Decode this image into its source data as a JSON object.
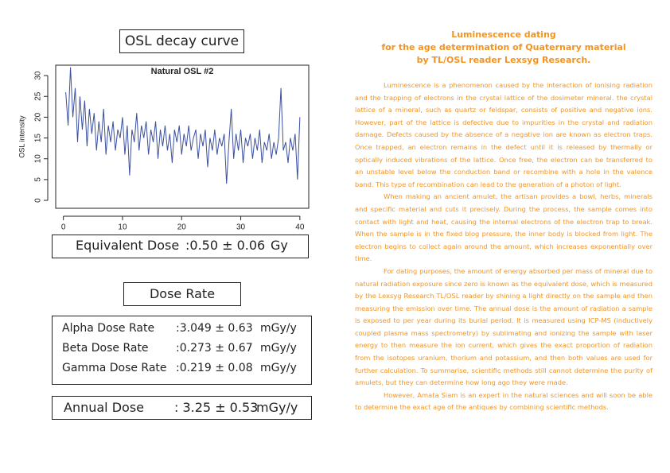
{
  "panel_title": "OSL decay curve",
  "chart_data": {
    "type": "line",
    "title": "Natural OSL #2",
    "y_label": "OSL intensity",
    "color": "#3b4fa0",
    "x": [
      0.4,
      0.8,
      1.2,
      1.6,
      2.0,
      2.4,
      2.8,
      3.2,
      3.6,
      4.0,
      4.4,
      4.8,
      5.2,
      5.6,
      6.0,
      6.4,
      6.8,
      7.2,
      7.6,
      8.0,
      8.4,
      8.8,
      9.2,
      9.6,
      10.0,
      10.4,
      10.8,
      11.2,
      11.6,
      12.0,
      12.4,
      12.8,
      13.2,
      13.6,
      14.0,
      14.4,
      14.8,
      15.2,
      15.6,
      16.0,
      16.4,
      16.8,
      17.2,
      17.6,
      18.0,
      18.4,
      18.8,
      19.2,
      19.6,
      20.0,
      20.4,
      20.8,
      21.2,
      21.6,
      22.0,
      22.4,
      22.8,
      23.2,
      23.6,
      24.0,
      24.4,
      24.8,
      25.2,
      25.6,
      26.0,
      26.4,
      26.8,
      27.2,
      27.6,
      28.0,
      28.4,
      28.8,
      29.2,
      29.6,
      30.0,
      30.4,
      30.8,
      31.2,
      31.6,
      32.0,
      32.4,
      32.8,
      33.2,
      33.6,
      34.0,
      34.4,
      34.8,
      35.2,
      35.6,
      36.0,
      36.4,
      36.8,
      37.2,
      37.6,
      38.0,
      38.4,
      38.8,
      39.2,
      39.6,
      40.0
    ],
    "values": [
      26,
      18,
      32,
      20,
      27,
      14,
      25,
      17,
      24,
      13,
      22,
      16,
      21,
      12,
      19,
      14,
      22,
      11,
      18,
      14,
      19,
      12,
      17,
      15,
      20,
      11,
      18,
      6,
      17,
      14,
      21,
      12,
      18,
      15,
      19,
      11,
      17,
      14,
      19,
      10,
      17,
      13,
      18,
      12,
      16,
      9,
      17,
      14,
      18,
      11,
      16,
      13,
      18,
      12,
      15,
      17,
      10,
      16,
      13,
      17,
      8,
      15,
      12,
      17,
      11,
      15,
      13,
      16,
      4,
      14,
      22,
      10,
      16,
      12,
      17,
      9,
      15,
      13,
      16,
      10,
      15,
      12,
      17,
      9,
      14,
      12,
      16,
      10,
      14,
      11,
      15,
      27,
      12,
      14,
      9,
      15,
      12,
      16,
      5,
      20
    ],
    "xlim": [
      -1.3,
      41.5
    ],
    "ylim": [
      -1.9,
      32.5
    ],
    "xticks": [
      0,
      10,
      20,
      30,
      40
    ],
    "yticks": [
      0,
      5,
      10,
      15,
      20,
      25,
      30
    ]
  },
  "equivalent_dose": {
    "label": "Equivalent Dose",
    "value": ":0.50 ± 0.06",
    "unit": "Gy"
  },
  "dose_rate_title": "Dose Rate",
  "dose_rates": [
    {
      "label": "Alpha Dose Rate",
      "value": ":3.049 ± 0.63",
      "unit": "mGy/y"
    },
    {
      "label": "Beta Dose Rate",
      "value": ":0.273 ± 0.67",
      "unit": "mGy/y"
    },
    {
      "label": "Gamma Dose Rate",
      "value": ":0.219 ± 0.08",
      "unit": "mGy/y"
    }
  ],
  "annual_dose": {
    "label": "Annual Dose",
    "value": ": 3.25 ± 0.53",
    "unit": "mGy/y"
  },
  "article": {
    "title": [
      "Luminescence dating",
      "for the age determination of Quaternary material",
      "by TL/OSL reader Lexsyg Research."
    ],
    "paragraphs": [
      "Luminescence is a phenomenon caused by the interaction of ionising radiation and the trapping of electrons in the crystal lattice of the dosimeter mineral. the crystal lattice of a mineral, such as quartz or feldspar, consists of positive and negative ions. However, part of the lattice is defective due to impurities in the crystal and radiation damage. Defects caused by the absence of a negative ion are known as electron traps. Once trapped, an electron remains in the defect until it is released by thermally or optically induced vibrations of the lattice. Once free, the electron can be transferred to an unstable level below the conduction band or recombine with a hole in the valence band. This type of recombination can lead to the generation of a photon of light.",
      "When making an ancient amulet, the artisan provides a bowl, herbs, minerals and specific material and cuts it precisely. During the process, the sample comes into contact with light and heat, causing the internal electrons of the electron trap to break. When the sample is in the fixed blog pressure, the inner body is blocked from light. The electron begins to collect again around the amount, which increases exponentially over time.",
      "For dating purposes, the amount of energy absorbed per mass of mineral due to natural radiation exposure since zero is known as the equivalent dose, which is measured by the Lexsyg Research TL/OSL reader by shining a light directly on the sample and then measuring the emission over time. The annual dose is the amount of radiation a sample is exposed to per year during its burial period. It is measured using ICP-MS (inductively coupled plasma mass spectrometry) by sublimating and ionizing the sample with laser energy to then measure the ion current, which gives the exact proportion of radiation from the isotopes uranium, thorium and potassium, and then both values are used for further calculation. To summarise, scientific methods still cannot determine the purity of amulets, but they can determine how long ago they were made.",
      "However, Amata Siam is an expert in the natural sciences and will soon be able to determine the exact age of the antiques by combining scientific methods."
    ]
  }
}
